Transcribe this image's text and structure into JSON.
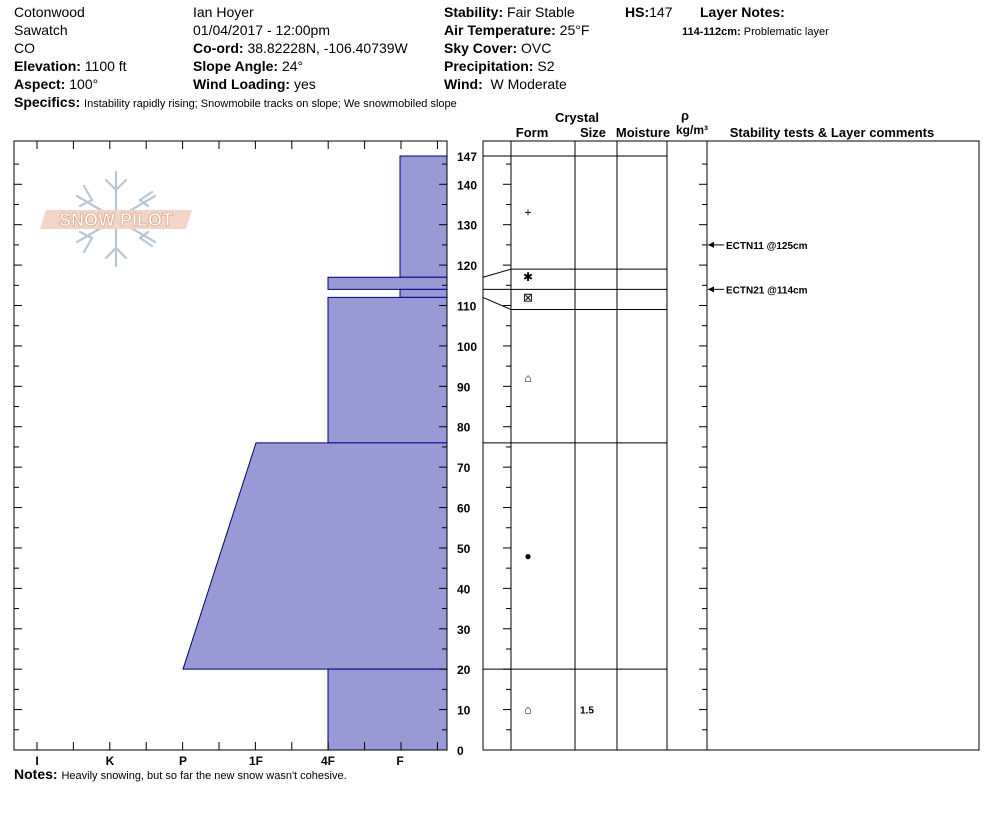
{
  "header": {
    "location": "Cotonwood",
    "range": "Sawatch",
    "state": "CO",
    "elevation_label": "Elevation:",
    "elevation": "1100 ft",
    "aspect_label": "Aspect:",
    "aspect": "100°",
    "observer": "Ian Hoyer",
    "datetime": "01/04/2017 - 12:00pm",
    "coord_label": "Co-ord:",
    "coord": "38.82228N, -106.40739W",
    "slope_label": "Slope Angle:",
    "slope": "24°",
    "wind_loading_label": "Wind Loading:",
    "wind_loading": "yes",
    "stability_label": "Stability:",
    "stability": "Fair Stable",
    "air_temp_label": "Air Temperature:",
    "air_temp": "25°F",
    "sky_label": "Sky Cover:",
    "sky": "OVC",
    "precip_label": "Precipitation:",
    "precip": "S2",
    "wind_label": "Wind:",
    "wind": "W Moderate",
    "hs_label": "HS:",
    "hs": "147",
    "layer_notes_label": "Layer Notes:",
    "layer_note_range": "114-112cm:",
    "layer_note_text": "Problematic layer",
    "specifics_label": "Specifics:",
    "specifics": "Instability rapidly rising;  Snowmobile tracks on slope;  We snowmobiled slope",
    "notes_label": "Notes:",
    "notes": "Heavily snowing, but so far the new snow wasn't cohesive."
  },
  "logo_text": "SNOW PILOT",
  "columns": {
    "crystal": "Crystal",
    "form": "Form",
    "size": "Size",
    "moisture": "Moisture",
    "rho": "ρ",
    "density_unit": "kg/m³",
    "stability": "Stability tests & Layer comments"
  },
  "colors": {
    "hardness_fill": "#9999d6",
    "hardness_stroke": "#000080"
  },
  "chart_data": {
    "type": "area",
    "hardness_scale": [
      "I",
      "K",
      "P",
      "1F",
      "4F",
      "F"
    ],
    "height_axis": {
      "min": 0,
      "max": 147,
      "ticks": [
        0,
        10,
        20,
        30,
        40,
        50,
        60,
        70,
        80,
        90,
        100,
        110,
        120,
        130,
        140,
        147
      ]
    },
    "layers": [
      {
        "top": 147,
        "bottom": 117,
        "hardness_top": "F",
        "hardness_bottom": "F"
      },
      {
        "top": 117,
        "bottom": 114,
        "hardness_top": "4F",
        "hardness_bottom": "4F"
      },
      {
        "top": 114,
        "bottom": 112,
        "hardness_top": "F",
        "hardness_bottom": "F"
      },
      {
        "top": 112,
        "bottom": 76,
        "hardness_top": "4F",
        "hardness_bottom": "4F"
      },
      {
        "top": 76,
        "bottom": 20,
        "hardness_top": "1F",
        "hardness_bottom": "P"
      },
      {
        "top": 20,
        "bottom": 0,
        "hardness_top": "4F",
        "hardness_bottom": "4F"
      }
    ],
    "boundaries": [
      147,
      119,
      114,
      109,
      76,
      20
    ],
    "grain_marks": [
      {
        "height": 133,
        "symbol": "+",
        "size": ""
      },
      {
        "height": 117,
        "symbol": "✱",
        "size": ""
      },
      {
        "height": 112,
        "symbol": "⊠",
        "size": ""
      },
      {
        "height": 92,
        "symbol": "⌂",
        "size": ""
      },
      {
        "height": 48,
        "symbol": "●",
        "size": ""
      },
      {
        "height": 10,
        "symbol": "⌂",
        "size": "1.5"
      }
    ],
    "tests": [
      {
        "height": 125,
        "label": "ECTN11 @125cm"
      },
      {
        "height": 114,
        "label": "ECTN21 @114cm"
      }
    ]
  }
}
